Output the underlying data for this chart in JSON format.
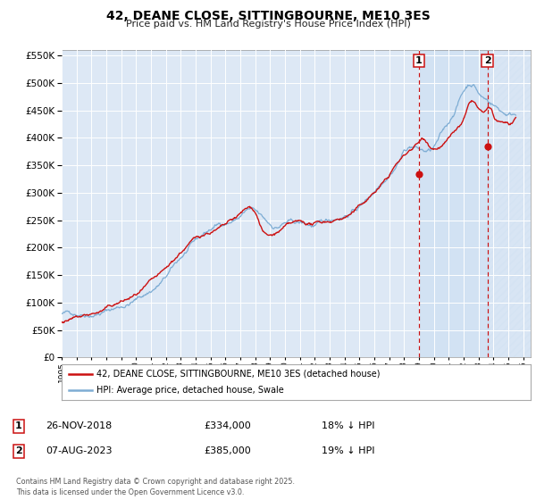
{
  "title": "42, DEANE CLOSE, SITTINGBOURNE, ME10 3ES",
  "subtitle": "Price paid vs. HM Land Registry's House Price Index (HPI)",
  "legend_line1": "42, DEANE CLOSE, SITTINGBOURNE, ME10 3ES (detached house)",
  "legend_line2": "HPI: Average price, detached house, Swale",
  "marker1_date": "26-NOV-2018",
  "marker1_price": 334000,
  "marker1_hpi": "18% ↓ HPI",
  "marker2_date": "07-AUG-2023",
  "marker2_price": 385000,
  "marker2_hpi": "19% ↓ HPI",
  "footer": "Contains HM Land Registry data © Crown copyright and database right 2025.\nThis data is licensed under the Open Government Licence v3.0.",
  "hpi_color": "#7eadd4",
  "price_color": "#cc1111",
  "marker_color": "#cc1111",
  "background_plot": "#dde8f5",
  "background_fig": "#ffffff",
  "ylim": [
    0,
    560000
  ],
  "xlim_start": 1995.0,
  "xlim_end": 2026.5,
  "marker1_x": 2019.0,
  "marker2_x": 2023.6,
  "marker1_y": 334000,
  "marker2_y": 385000
}
